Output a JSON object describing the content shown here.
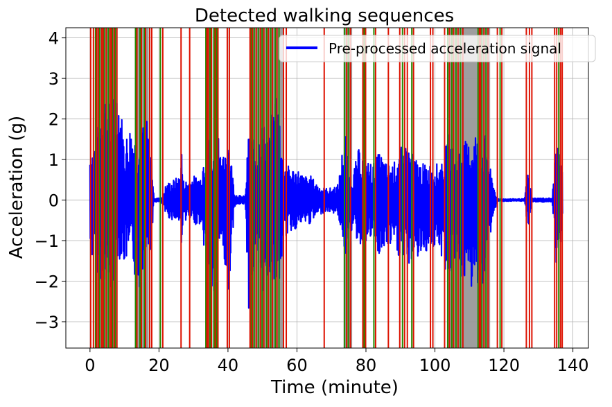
{
  "chart_data": {
    "type": "line",
    "title": "Detected walking sequences",
    "xlabel": "Time (minute)",
    "ylabel": "Acceleration (g)",
    "xlim": [
      -7,
      144.5
    ],
    "ylim": [
      -3.65,
      4.25
    ],
    "xticks": [
      0,
      20,
      40,
      60,
      80,
      100,
      120,
      140
    ],
    "xtick_labels": [
      "0",
      "20",
      "40",
      "60",
      "80",
      "100",
      "120",
      "140"
    ],
    "yticks": [
      -3,
      -2,
      -1,
      0,
      1,
      2,
      3,
      4
    ],
    "ytick_labels": [
      "−3",
      "−2",
      "−1",
      "0",
      "1",
      "2",
      "3",
      "4"
    ],
    "grid": true,
    "legend": {
      "position": "top-right",
      "entries": [
        "Pre-processed acceleration signal"
      ]
    },
    "series": [
      {
        "name": "Pre-processed acceleration signal",
        "color": "#0000ff",
        "style": "line",
        "envelope": {
          "x": [
            0,
            2,
            4,
            6,
            8,
            10,
            12,
            14,
            16,
            18,
            18.5,
            20,
            21,
            22,
            24,
            26,
            26.5,
            27,
            28,
            30,
            32,
            34,
            35,
            36,
            37,
            38,
            40,
            42,
            44,
            45,
            46,
            48,
            50,
            52,
            54,
            55,
            56,
            58,
            60,
            62,
            64,
            66,
            68,
            70,
            72,
            74,
            75,
            76,
            78,
            80,
            82,
            84,
            86,
            88,
            90,
            92,
            94,
            96,
            98,
            100,
            102,
            104,
            106,
            108,
            110,
            112,
            113,
            114,
            115,
            116,
            118,
            119,
            120,
            124,
            126,
            127,
            128,
            130,
            132,
            134,
            135,
            136,
            137
          ],
          "upper": [
            1.3,
            1.6,
            3.0,
            2.2,
            3.1,
            1.5,
            2.0,
            1.3,
            2.2,
            1.2,
            0.05,
            0.05,
            0.1,
            0.4,
            0.5,
            0.6,
            1.5,
            0.5,
            0.5,
            0.6,
            0.6,
            1.8,
            1.2,
            1.1,
            2.9,
            0.8,
            1.8,
            0.15,
            0.1,
            0.1,
            1.8,
            1.4,
            2.0,
            1.6,
            2.9,
            2.3,
            1.0,
            0.8,
            0.8,
            0.6,
            0.6,
            0.4,
            0.3,
            0.3,
            0.4,
            1.9,
            0.7,
            0.6,
            1.3,
            1.0,
            0.9,
            1.2,
            0.9,
            0.9,
            1.3,
            1.4,
            1.1,
            0.9,
            0.9,
            0.9,
            0.9,
            1.7,
            1.0,
            1.5,
            1.4,
            1.8,
            1.0,
            1.6,
            1.6,
            0.8,
            0.03,
            0.03,
            0.03,
            0.03,
            0.03,
            0.8,
            0.05,
            0.05,
            0.05,
            0.05,
            1.4,
            1.2,
            0.8
          ],
          "lower": [
            -1.3,
            -1.8,
            -2.1,
            -2.4,
            -1.4,
            -1.6,
            -1.4,
            -2.5,
            -1.3,
            -1.2,
            -0.05,
            -0.05,
            -0.1,
            -0.4,
            -0.5,
            -0.6,
            -1.1,
            -0.5,
            -0.5,
            -0.6,
            -0.6,
            -1.7,
            -2.0,
            -2.9,
            -1.3,
            -0.9,
            -2.5,
            -0.15,
            -0.1,
            -0.1,
            -2.7,
            -1.6,
            -2.3,
            -1.9,
            -2.1,
            -2.2,
            -1.0,
            -0.8,
            -0.7,
            -0.6,
            -0.6,
            -0.4,
            -0.3,
            -0.3,
            -0.4,
            -1.4,
            -0.7,
            -0.8,
            -1.1,
            -1.2,
            -0.9,
            -1.5,
            -1.2,
            -1.2,
            -1.5,
            -1.7,
            -1.4,
            -1.5,
            -1.2,
            -1.2,
            -1.5,
            -2.0,
            -1.4,
            -2.1,
            -2.2,
            -2.4,
            -1.5,
            -2.5,
            -1.6,
            -0.9,
            -0.03,
            -0.03,
            -0.03,
            -0.03,
            -0.03,
            -0.8,
            -0.05,
            -0.05,
            -0.05,
            -0.05,
            -1.7,
            -1.5,
            -0.5
          ]
        }
      }
    ],
    "walking_spans": [
      [
        1.5,
        8
      ],
      [
        13,
        17
      ],
      [
        33.5,
        35.5
      ],
      [
        46.5,
        56
      ],
      [
        73.5,
        76
      ],
      [
        103.5,
        116
      ]
    ],
    "span_color": "#999999",
    "boundary_markers": {
      "start_color": "#228b00",
      "end_color": "#dd1100",
      "start": [
        1.6,
        2.8,
        4.1,
        5.3,
        6.5,
        7.3,
        13.2,
        14.5,
        15.8,
        20.4,
        33.6,
        34.8,
        35.9,
        36.7,
        46.7,
        47.6,
        48.8,
        49.9,
        51.2,
        52.4,
        53.7,
        54.8,
        73.8,
        74.9,
        79.5,
        82.3,
        90.6,
        93.3,
        103.7,
        104.9,
        106.1,
        107.4,
        112.5,
        113.6,
        114.8,
        118.9,
        135.9
      ],
      "end": [
        0.2,
        1.0,
        1.9,
        2.4,
        3.4,
        3.8,
        4.7,
        5.8,
        6.2,
        7.0,
        7.8,
        13.6,
        14.9,
        16.1,
        17.3,
        17.9,
        21.1,
        26.4,
        28.9,
        33.9,
        34.3,
        35.2,
        36.3,
        37.1,
        39.8,
        40.4,
        46.4,
        47.1,
        48.2,
        49.4,
        50.4,
        51.7,
        52.9,
        54.2,
        56.1,
        56.9,
        67.9,
        74.4,
        75.5,
        79.1,
        79.9,
        82.8,
        86.5,
        89.8,
        91.2,
        92.0,
        93.8,
        98.7,
        99.4,
        102.8,
        104.2,
        105.4,
        106.7,
        108.1,
        112.9,
        113.2,
        114.2,
        115.4,
        118.1,
        119.4,
        126.5,
        127.4,
        128.1,
        134.7,
        135.3,
        136.4,
        136.9
      ]
    }
  }
}
